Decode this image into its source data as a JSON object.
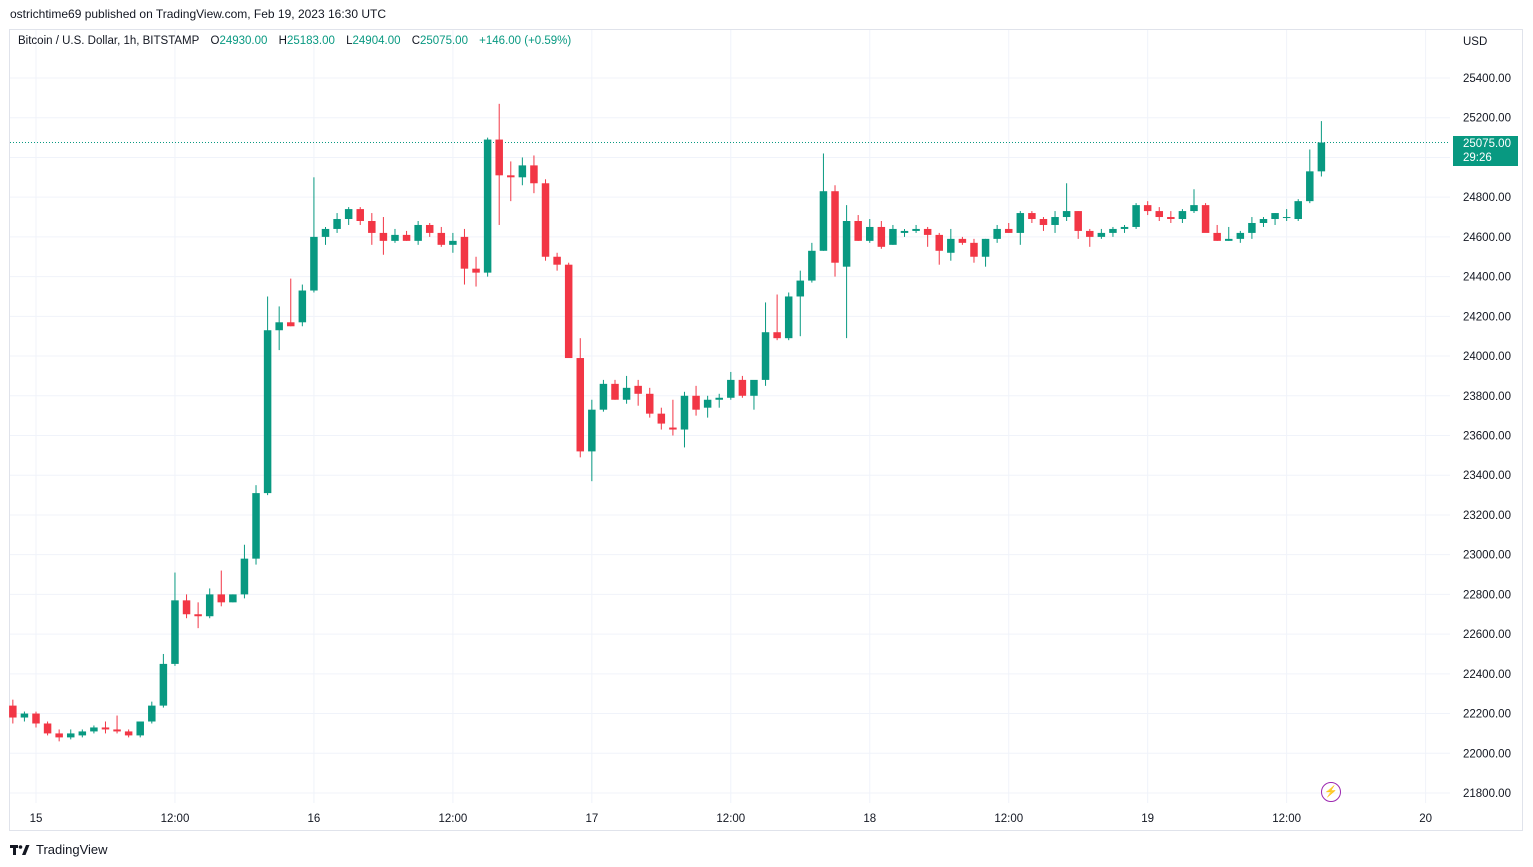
{
  "publisher_line": "ostrichtime69 published on TradingView.com, Feb 19, 2023 16:30 UTC",
  "legend": {
    "symbol": "Bitcoin / U.S. Dollar, 1h, BITSTAMP",
    "o_label": "O",
    "o_value": "24930.00",
    "h_label": "H",
    "h_value": "25183.00",
    "l_label": "L",
    "l_value": "24904.00",
    "c_label": "C",
    "c_value": "25075.00",
    "change": "+146.00 (+0.59%)"
  },
  "price_tag": {
    "price": "25075.00",
    "countdown": "29:26"
  },
  "footer": {
    "brand": "TradingView",
    "logo_icon": "tradingview-logo-icon"
  },
  "colors": {
    "up": "#089981",
    "down": "#f23645",
    "grid": "#f0f3fa",
    "accent_bolt": "#9c27b0"
  },
  "chart_data": {
    "type": "candlestick",
    "currency_label": "USD",
    "ylim": [
      21700,
      25700
    ],
    "last_price": 25075,
    "y_ticks": [
      "25400.00",
      "25200.00",
      "25000.00",
      "24800.00",
      "24600.00",
      "24400.00",
      "24200.00",
      "24000.00",
      "23800.00",
      "23600.00",
      "23400.00",
      "23200.00",
      "23000.00",
      "22800.00",
      "22600.00",
      "22400.00",
      "22200.00",
      "22000.00",
      "21800.00"
    ],
    "x_ticks": [
      {
        "label": "15",
        "hour": 0
      },
      {
        "label": "12:00",
        "hour": 12
      },
      {
        "label": "16",
        "hour": 24
      },
      {
        "label": "12:00",
        "hour": 36
      },
      {
        "label": "17",
        "hour": 48
      },
      {
        "label": "12:00",
        "hour": 60
      },
      {
        "label": "18",
        "hour": 72
      },
      {
        "label": "12:00",
        "hour": 84
      },
      {
        "label": "19",
        "hour": 96
      },
      {
        "label": "12:00",
        "hour": 108
      },
      {
        "label": "20",
        "hour": 120
      }
    ],
    "candles_start_hour": -2,
    "candles": [
      [
        22240,
        22270,
        22150,
        22180
      ],
      [
        22180,
        22210,
        22160,
        22200
      ],
      [
        22200,
        22210,
        22130,
        22150
      ],
      [
        22150,
        22160,
        22090,
        22100
      ],
      [
        22100,
        22120,
        22060,
        22080
      ],
      [
        22080,
        22120,
        22070,
        22100
      ],
      [
        22090,
        22120,
        22080,
        22110
      ],
      [
        22110,
        22140,
        22100,
        22130
      ],
      [
        22130,
        22160,
        22100,
        22120
      ],
      [
        22120,
        22190,
        22100,
        22110
      ],
      [
        22110,
        22120,
        22080,
        22090
      ],
      [
        22090,
        22160,
        22080,
        22160
      ],
      [
        22160,
        22260,
        22150,
        22240
      ],
      [
        22240,
        22500,
        22230,
        22450
      ],
      [
        22450,
        22910,
        22440,
        22770
      ],
      [
        22770,
        22800,
        22680,
        22700
      ],
      [
        22700,
        22760,
        22630,
        22690
      ],
      [
        22690,
        22830,
        22680,
        22800
      ],
      [
        22800,
        22920,
        22740,
        22760
      ],
      [
        22760,
        22800,
        22760,
        22800
      ],
      [
        22800,
        23050,
        22780,
        22980
      ],
      [
        22980,
        23350,
        22950,
        23310
      ],
      [
        23310,
        24300,
        23300,
        24130
      ],
      [
        24130,
        24250,
        24030,
        24170
      ],
      [
        24170,
        24390,
        24150,
        24150
      ],
      [
        24170,
        24360,
        24150,
        24330
      ],
      [
        24330,
        24900,
        24320,
        24600
      ],
      [
        24600,
        24650,
        24560,
        24640
      ],
      [
        24640,
        24720,
        24620,
        24690
      ],
      [
        24690,
        24750,
        24660,
        24740
      ],
      [
        24740,
        24750,
        24660,
        24680
      ],
      [
        24680,
        24720,
        24560,
        24620
      ],
      [
        24620,
        24700,
        24510,
        24580
      ],
      [
        24580,
        24640,
        24570,
        24610
      ],
      [
        24610,
        24630,
        24580,
        24580
      ],
      [
        24580,
        24680,
        24560,
        24660
      ],
      [
        24660,
        24670,
        24600,
        24620
      ],
      [
        24620,
        24650,
        24550,
        24560
      ],
      [
        24560,
        24620,
        24520,
        24580
      ],
      [
        24600,
        24640,
        24360,
        24440
      ],
      [
        24440,
        24500,
        24350,
        24420
      ],
      [
        24420,
        25100,
        24400,
        25090
      ],
      [
        25090,
        25270,
        24660,
        24910
      ],
      [
        24910,
        24980,
        24780,
        24900
      ],
      [
        24900,
        25000,
        24860,
        24960
      ],
      [
        24960,
        25010,
        24820,
        24870
      ],
      [
        24870,
        24890,
        24480,
        24500
      ],
      [
        24500,
        24520,
        24430,
        24460
      ],
      [
        24460,
        24470,
        24000,
        23990
      ],
      [
        23990,
        24090,
        23490,
        23520
      ],
      [
        23520,
        23780,
        23370,
        23730
      ],
      [
        23730,
        23880,
        23720,
        23860
      ],
      [
        23860,
        23880,
        23780,
        23780
      ],
      [
        23780,
        23900,
        23760,
        23840
      ],
      [
        23850,
        23880,
        23750,
        23810
      ],
      [
        23810,
        23840,
        23690,
        23710
      ],
      [
        23710,
        23740,
        23630,
        23660
      ],
      [
        23640,
        23780,
        23600,
        23630
      ],
      [
        23630,
        23820,
        23540,
        23800
      ],
      [
        23800,
        23850,
        23700,
        23730
      ],
      [
        23740,
        23800,
        23690,
        23780
      ],
      [
        23780,
        23810,
        23740,
        23790
      ],
      [
        23790,
        23920,
        23780,
        23880
      ],
      [
        23880,
        23900,
        23790,
        23800
      ],
      [
        23800,
        23850,
        23730,
        23880
      ],
      [
        23880,
        24270,
        23850,
        24120
      ],
      [
        24120,
        24310,
        24080,
        24090
      ],
      [
        24090,
        24320,
        24080,
        24300
      ],
      [
        24300,
        24430,
        24100,
        24380
      ],
      [
        24380,
        24570,
        24370,
        24530
      ],
      [
        24530,
        25020,
        24530,
        24830
      ],
      [
        24830,
        24860,
        24400,
        24470
      ],
      [
        24450,
        24760,
        24090,
        24680
      ],
      [
        24680,
        24710,
        24580,
        24580
      ],
      [
        24580,
        24690,
        24570,
        24650
      ],
      [
        24650,
        24680,
        24540,
        24550
      ],
      [
        24560,
        24660,
        24560,
        24640
      ],
      [
        24620,
        24640,
        24600,
        24630
      ],
      [
        24630,
        24660,
        24620,
        24640
      ],
      [
        24640,
        24650,
        24550,
        24610
      ],
      [
        24610,
        24620,
        24460,
        24530
      ],
      [
        24520,
        24640,
        24480,
        24590
      ],
      [
        24590,
        24600,
        24560,
        24570
      ],
      [
        24570,
        24590,
        24470,
        24500
      ],
      [
        24500,
        24590,
        24450,
        24590
      ],
      [
        24590,
        24660,
        24570,
        24640
      ],
      [
        24640,
        24670,
        24620,
        24620
      ],
      [
        24620,
        24730,
        24560,
        24720
      ],
      [
        24720,
        24730,
        24670,
        24690
      ],
      [
        24690,
        24700,
        24630,
        24660
      ],
      [
        24660,
        24730,
        24620,
        24700
      ],
      [
        24700,
        24870,
        24680,
        24730
      ],
      [
        24730,
        24730,
        24590,
        24630
      ],
      [
        24630,
        24640,
        24550,
        24600
      ],
      [
        24600,
        24640,
        24590,
        24620
      ],
      [
        24620,
        24650,
        24600,
        24640
      ],
      [
        24640,
        24660,
        24620,
        24650
      ],
      [
        24650,
        24770,
        24640,
        24760
      ],
      [
        24760,
        24780,
        24710,
        24730
      ],
      [
        24730,
        24750,
        24680,
        24700
      ],
      [
        24700,
        24730,
        24670,
        24690
      ],
      [
        24690,
        24740,
        24670,
        24730
      ],
      [
        24730,
        24840,
        24720,
        24760
      ],
      [
        24760,
        24770,
        24630,
        24620
      ],
      [
        24620,
        24660,
        24580,
        24580
      ],
      [
        24580,
        24650,
        24580,
        24590
      ],
      [
        24590,
        24630,
        24570,
        24620
      ],
      [
        24620,
        24700,
        24590,
        24670
      ],
      [
        24670,
        24700,
        24650,
        24690
      ],
      [
        24690,
        24720,
        24660,
        24720
      ],
      [
        24700,
        24740,
        24680,
        24700
      ],
      [
        24690,
        24790,
        24680,
        24780
      ],
      [
        24780,
        25040,
        24770,
        24930
      ],
      [
        24930,
        25183,
        24904,
        25075
      ]
    ]
  }
}
